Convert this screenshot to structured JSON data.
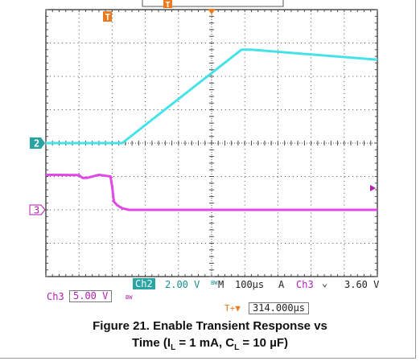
{
  "chart_data": {
    "type": "line",
    "title": "Figure 21. Enable Transient Response vs",
    "caption_part2_prefix": "Time (I",
    "caption_sub_l": "L",
    "caption_mid": " = 1 mA, C",
    "caption_sub_l2": "L",
    "caption_end": " = 10 µF)",
    "grid": true,
    "x_divisions": 10,
    "y_divisions": 8,
    "x_units": "div",
    "y_units": "div",
    "xlim": [
      0,
      10
    ],
    "ylim": [
      -4,
      4
    ],
    "series": [
      {
        "name": "Ch2",
        "color": "#45e3e7",
        "marker_label": "2",
        "marker_level": 0,
        "x": [
          0,
          2.3,
          5.9,
          6.2,
          10
        ],
        "y": [
          0,
          0,
          2.8,
          2.8,
          2.5
        ]
      },
      {
        "name": "Ch3",
        "color": "#e347e8",
        "marker_label": "3",
        "marker_level": -2,
        "x": [
          0,
          1.0,
          1.1,
          1.25,
          1.6,
          1.95,
          2.0,
          2.05,
          2.15,
          2.3,
          2.5,
          10
        ],
        "y": [
          -0.95,
          -0.96,
          -1.04,
          -1.04,
          -0.95,
          -1.0,
          -1.3,
          -1.75,
          -1.86,
          -1.95,
          -2.0,
          -2.0
        ]
      }
    ],
    "trigger_level_div": -1.35
  },
  "readouts": {
    "ch2_label": "Ch2",
    "ch2_volts": "2.00 V",
    "bw_glyph": "BW",
    "m_label": "M",
    "timebase": "100µs",
    "a_label": "A",
    "trig_ch": "Ch3",
    "trig_slope": "⌄",
    "trig_level": "3.60 V",
    "ch3_label": "Ch3",
    "ch3_volts": "5.00 V",
    "ch3_bw": "BW",
    "trig_pos_icon": "T+▼",
    "trig_pos": "314.000µs"
  },
  "markers": {
    "top_t": "T",
    "top_t_mid": "T",
    "top_trigger": "▼",
    "right_arrow": "◀"
  },
  "colors": {
    "teal_box": "#2aa3a3",
    "orange": "#ee7a1f",
    "grid": "#4a4a4a"
  }
}
